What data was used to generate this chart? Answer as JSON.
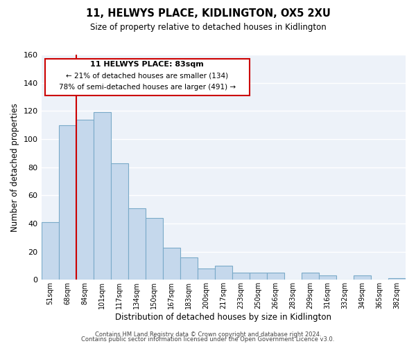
{
  "title": "11, HELWYS PLACE, KIDLINGTON, OX5 2XU",
  "subtitle": "Size of property relative to detached houses in Kidlington",
  "xlabel": "Distribution of detached houses by size in Kidlington",
  "ylabel": "Number of detached properties",
  "categories": [
    "51sqm",
    "68sqm",
    "84sqm",
    "101sqm",
    "117sqm",
    "134sqm",
    "150sqm",
    "167sqm",
    "183sqm",
    "200sqm",
    "217sqm",
    "233sqm",
    "250sqm",
    "266sqm",
    "283sqm",
    "299sqm",
    "316sqm",
    "332sqm",
    "349sqm",
    "365sqm",
    "382sqm"
  ],
  "values": [
    41,
    110,
    114,
    119,
    83,
    51,
    44,
    23,
    16,
    8,
    10,
    5,
    5,
    5,
    0,
    5,
    3,
    0,
    3,
    0,
    1
  ],
  "highlight_index": 2,
  "highlight_color": "#cc0000",
  "bar_color": "#c5d8ec",
  "bar_edge_color": "#7aaac8",
  "ylim": [
    0,
    160
  ],
  "yticks": [
    0,
    20,
    40,
    60,
    80,
    100,
    120,
    140,
    160
  ],
  "annotation_title": "11 HELWYS PLACE: 83sqm",
  "annotation_line1": "← 21% of detached houses are smaller (134)",
  "annotation_line2": "78% of semi-detached houses are larger (491) →",
  "footer_line1": "Contains HM Land Registry data © Crown copyright and database right 2024.",
  "footer_line2": "Contains public sector information licensed under the Open Government Licence v3.0.",
  "background_color": "#edf2f9"
}
